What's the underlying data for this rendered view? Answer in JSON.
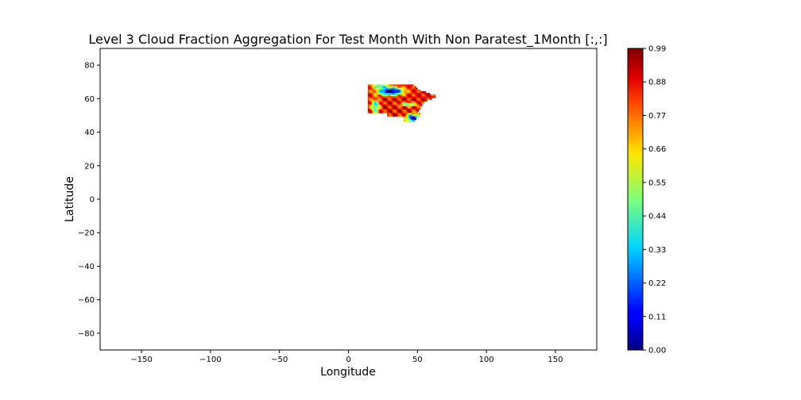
{
  "chart_data": {
    "type": "heatmap",
    "title": "Level 3 Cloud Fraction Aggregation For Test Month With Non Paratest_1Month [:,:]",
    "xlabel": "Longitude",
    "ylabel": "Latitude",
    "xlim": [
      -180,
      180
    ],
    "ylim": [
      -90,
      90
    ],
    "x_ticks": [
      -150,
      -100,
      -50,
      0,
      50,
      100,
      150
    ],
    "x_tick_labels": [
      "−150",
      "−100",
      "−50",
      "0",
      "50",
      "100",
      "150"
    ],
    "y_ticks": [
      80,
      60,
      40,
      20,
      0,
      -20,
      -40,
      -60,
      -80
    ],
    "y_tick_labels": [
      "80",
      "60",
      "40",
      "20",
      "0",
      "−20",
      "−40",
      "−60",
      "−80"
    ],
    "grid": false,
    "colormap": "jet",
    "colorbar": {
      "range": [
        0.0,
        0.99
      ],
      "ticks": [
        0.0,
        0.11,
        0.22,
        0.33,
        0.44,
        0.55,
        0.66,
        0.77,
        0.88,
        0.99
      ],
      "tick_labels": [
        "0.00",
        "0.11",
        "0.22",
        "0.33",
        "0.44",
        "0.55",
        "0.66",
        "0.77",
        "0.88",
        "0.99"
      ]
    },
    "data_region": {
      "lon_range": [
        14,
        65
      ],
      "lat_range": [
        47,
        69
      ]
    }
  }
}
